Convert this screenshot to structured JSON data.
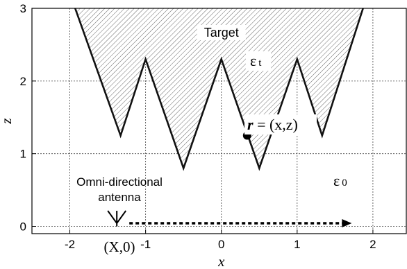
{
  "diagram": {
    "axes": {
      "x_label": "x",
      "y_label": "z",
      "x_range": [
        -2.5,
        2.45
      ],
      "y_range": [
        -0.1,
        3.0
      ],
      "x_ticks": [
        {
          "value": -2,
          "label": "-2"
        },
        {
          "value": -1,
          "label": "-1"
        },
        {
          "value": 0,
          "label": "0"
        },
        {
          "value": 1,
          "label": "1"
        },
        {
          "value": 2,
          "label": "2"
        }
      ],
      "y_ticks": [
        {
          "value": 0,
          "label": "0"
        },
        {
          "value": 1,
          "label": "1"
        },
        {
          "value": 2,
          "label": "2"
        },
        {
          "value": 3,
          "label": "3"
        }
      ],
      "grid": "dashed"
    },
    "target": {
      "label": "Target",
      "permittivity_symbol": "ε",
      "permittivity_subscript": "t",
      "boundary": [
        [
          -1.93,
          3.0
        ],
        [
          -1.33,
          1.25
        ],
        [
          -1.0,
          2.3
        ],
        [
          -0.5,
          0.8
        ],
        [
          0.0,
          2.3
        ],
        [
          0.5,
          0.8
        ],
        [
          1.0,
          2.3
        ],
        [
          1.33,
          1.25
        ],
        [
          1.87,
          3.0
        ]
      ],
      "fill": "hatched"
    },
    "background": {
      "permittivity_symbol": "ε",
      "permittivity_subscript": "0"
    },
    "point": {
      "label_bold": "r",
      "label_rest": " = (x,z)",
      "position": [
        0.34,
        1.25
      ]
    },
    "antenna": {
      "label_line1": "Omni-directional",
      "label_line2": "antenna",
      "position_label": "(X,0)",
      "position": [
        -1.38,
        0
      ],
      "scan_end_x": 1.72
    }
  }
}
